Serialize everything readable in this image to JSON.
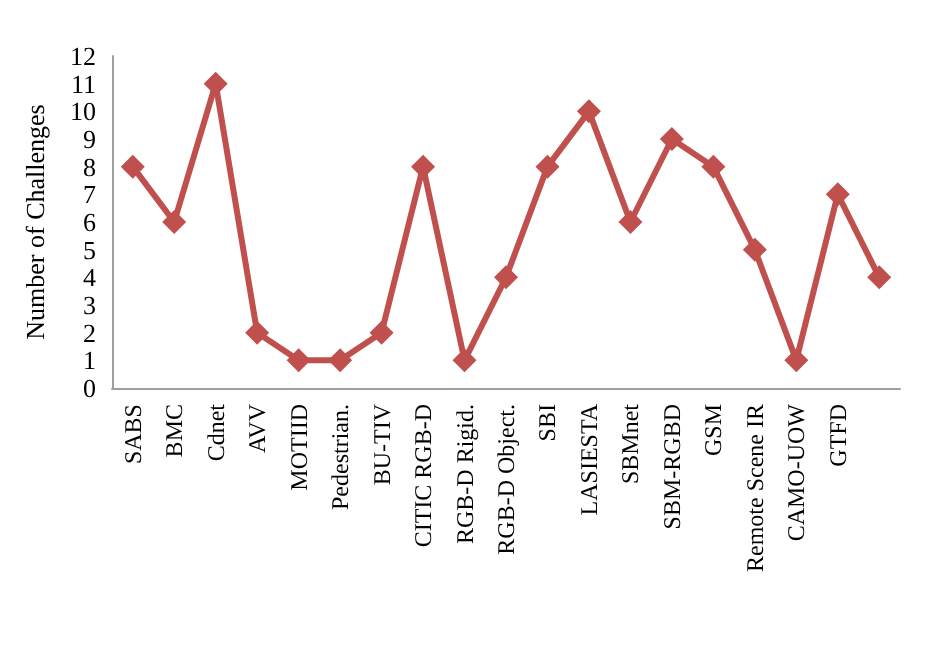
{
  "chart_data": {
    "type": "line",
    "ylabel": "Number of Challenges",
    "categories": [
      "SABS",
      "BMC",
      "Cdnet",
      "AVV",
      "MOTIID",
      "Pedestrian.",
      "BU-TIV",
      "CITIC RGB-D",
      "RGB-D Rigid.",
      "RGB-D Object.",
      "SBI",
      "LASIESTA",
      "SBMnet",
      "SBM-RGBD",
      "GSM",
      "Remote Scene IR",
      "CAMO-UOW",
      "GTFD",
      null
    ],
    "series": [
      {
        "color": "#c0504d",
        "values": [
          8,
          6,
          11,
          2,
          1,
          1,
          2,
          8,
          1,
          4,
          8,
          10,
          6,
          9,
          8,
          5,
          1,
          7,
          4
        ]
      }
    ],
    "ylim": [
      0,
      12
    ],
    "yticks": [
      0,
      1,
      2,
      3,
      4,
      5,
      6,
      7,
      8,
      9,
      10,
      11,
      12
    ],
    "grid": false,
    "marker": "diamond",
    "line_style": "solid"
  }
}
